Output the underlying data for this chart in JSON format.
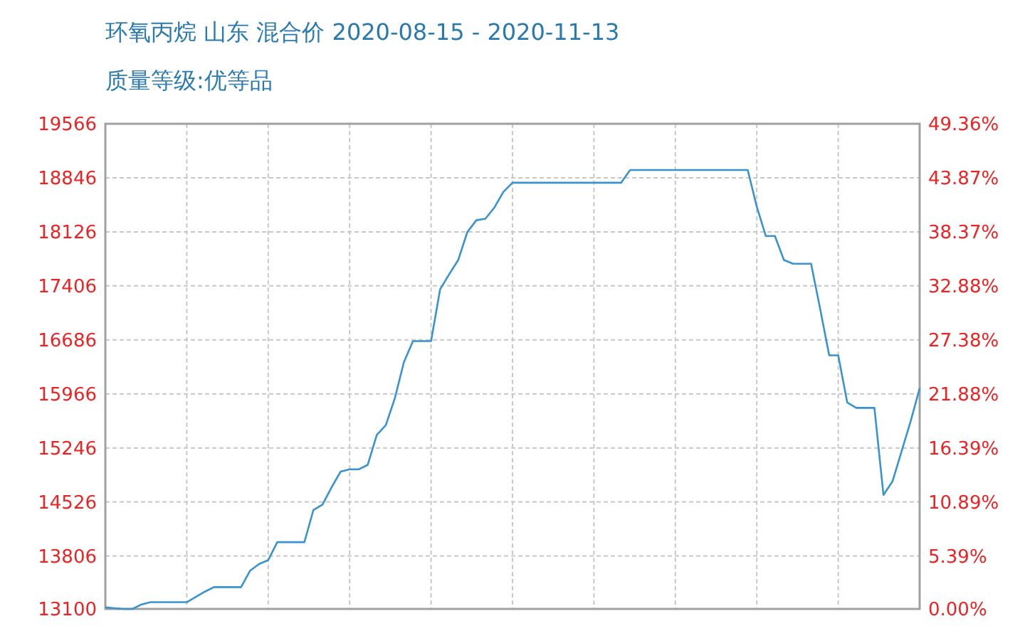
{
  "chart_data": {
    "type": "line",
    "title": "环氧丙烷 山东 混合价 2020-08-15 - 2020-11-13",
    "subtitle": "质量等级:优等品",
    "categories": [
      null,
      null,
      null,
      null,
      null,
      null,
      null,
      null,
      null,
      null,
      null,
      null,
      null,
      null,
      null,
      null,
      null,
      null,
      null,
      null,
      null,
      null,
      null,
      null,
      null,
      null,
      null,
      null,
      null,
      null,
      null,
      null,
      null,
      null,
      null,
      null,
      null,
      null,
      null,
      null,
      null,
      null,
      null,
      null,
      null,
      null,
      null,
      null,
      null,
      null,
      null,
      null,
      null,
      null,
      null,
      null,
      null,
      null,
      null,
      null,
      null,
      null,
      null,
      null,
      null,
      null,
      null,
      null,
      null,
      null,
      null,
      null,
      null,
      null,
      null,
      null,
      null,
      null,
      null,
      null,
      null,
      null,
      null,
      null,
      null,
      null,
      null,
      null,
      null,
      null,
      null
    ],
    "series": [
      {
        "color": "#3a93cf",
        "values": [
          13120,
          13110,
          13100,
          13100,
          13160,
          13190,
          13190,
          13190,
          13190,
          13190,
          13260,
          13330,
          13390,
          13390,
          13390,
          13390,
          13610,
          13700,
          13750,
          13990,
          13990,
          13990,
          13990,
          14420,
          14490,
          14720,
          14930,
          14960,
          14960,
          15020,
          15420,
          15550,
          15910,
          16390,
          16670,
          16670,
          16670,
          17360,
          17560,
          17750,
          18120,
          18280,
          18300,
          18450,
          18660,
          18780,
          18780,
          18780,
          18780,
          18780,
          18780,
          18780,
          18780,
          18780,
          18780,
          18780,
          18780,
          18780,
          18950,
          18950,
          18950,
          18950,
          18950,
          18950,
          18950,
          18950,
          18950,
          18950,
          18950,
          18950,
          18950,
          18950,
          18460,
          18070,
          18070,
          17750,
          17700,
          17700,
          17700,
          17100,
          16480,
          16480,
          15850,
          15780,
          15780,
          15780,
          14620,
          14800,
          15200,
          15600,
          16040
        ]
      }
    ],
    "ylim": [
      13100,
      19566
    ],
    "yticks": [
      13100,
      13806,
      14526,
      15246,
      15966,
      16686,
      17406,
      18126,
      18846,
      19566
    ],
    "y2lim": [
      0,
      49.36
    ],
    "y2ticks": [
      {
        "value": 0,
        "label": "0.00%"
      },
      {
        "value": 5.39,
        "label": "5.39%"
      },
      {
        "value": 10.89,
        "label": "10.89%"
      },
      {
        "value": 16.39,
        "label": "16.39%"
      },
      {
        "value": 21.88,
        "label": "21.88%"
      },
      {
        "value": 27.38,
        "label": "27.38%"
      },
      {
        "value": 32.88,
        "label": "32.88%"
      },
      {
        "value": 38.37,
        "label": "38.37%"
      },
      {
        "value": 43.87,
        "label": "43.87%"
      },
      {
        "value": 49.36,
        "label": "49.36%"
      }
    ],
    "grid": true
  }
}
